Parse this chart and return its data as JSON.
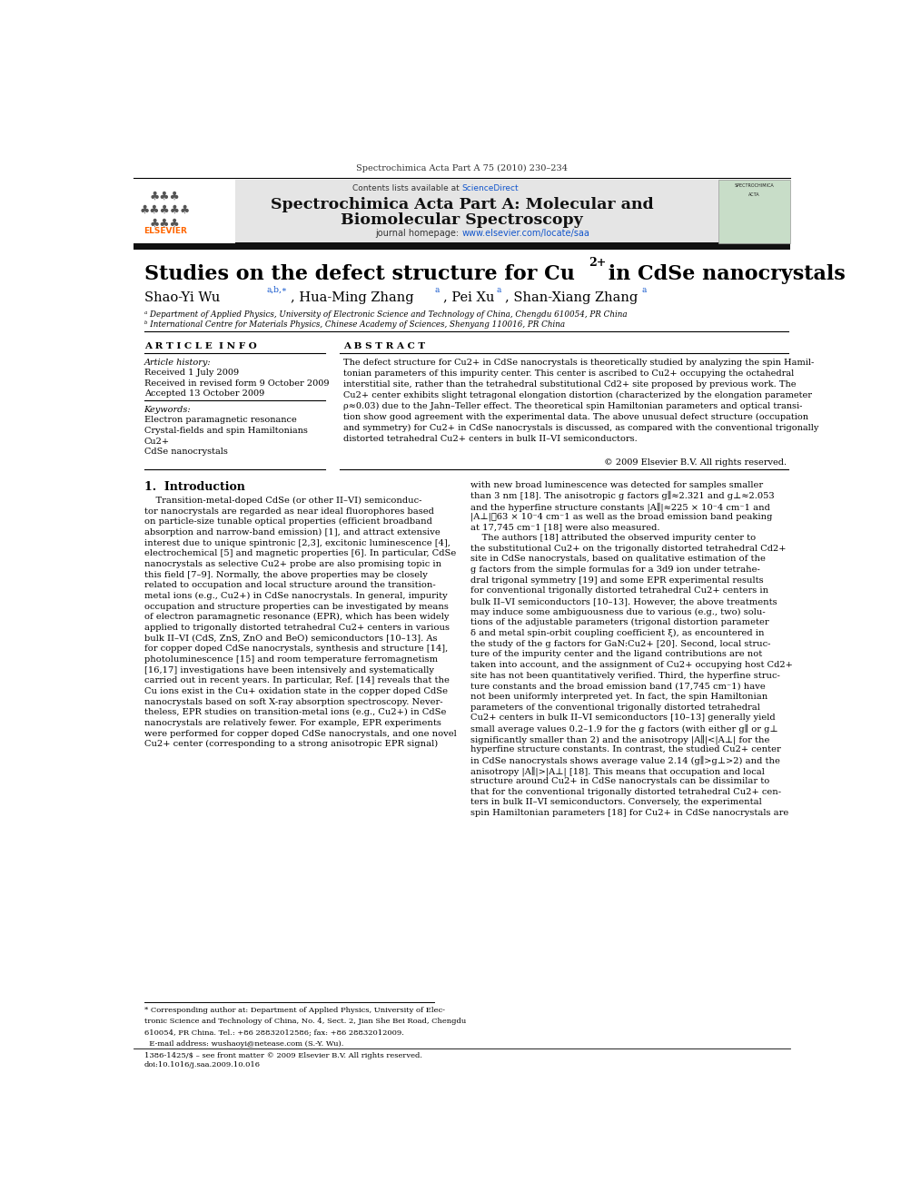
{
  "page_width": 9.92,
  "page_height": 13.23,
  "bg_color": "#ffffff",
  "header_journal_ref": "Spectrochimica Acta Part A 75 (2010) 230–234",
  "journal_title_line1": "Spectrochimica Acta Part A: Molecular and",
  "journal_title_line2": "Biomolecular Spectroscopy",
  "sciencedirect_text": "Contents lists available at ",
  "sciencedirect_link": "ScienceDirect",
  "paper_title_main": "Studies on the defect structure for Cu",
  "paper_title_sup": "2+",
  "paper_title_end": " in CdSe nanocrystals",
  "author1": "Shao-Yi Wu",
  "author1_sup": "a,b,∗",
  "author2": ", Hua-Ming Zhang",
  "author2_sup": "a",
  "author3": ", Pei Xu",
  "author3_sup": "a",
  "author4": ", Shan-Xiang Zhang",
  "author4_sup": "a",
  "affil_a": "ᵃ Department of Applied Physics, University of Electronic Science and Technology of China, Chengdu 610054, PR China",
  "affil_b": "ᵇ International Centre for Materials Physics, Chinese Academy of Sciences, Shenyang 110016, PR China",
  "article_info_header": "A R T I C L E  I N F O",
  "abstract_header": "A B S T R A C T",
  "article_history_label": "Article history:",
  "received1": "Received 1 July 2009",
  "received2": "Received in revised form 9 October 2009",
  "accepted": "Accepted 13 October 2009",
  "keywords_label": "Keywords:",
  "kw1": "Electron paramagnetic resonance",
  "kw2": "Crystal-fields and spin Hamiltonians",
  "kw3": "Cu2+",
  "kw4": "CdSe nanocrystals",
  "copyright": "© 2009 Elsevier B.V. All rights reserved.",
  "abstract_lines": [
    "The defect structure for Cu2+ in CdSe nanocrystals is theoretically studied by analyzing the spin Hamil-",
    "tonian parameters of this impurity center. This center is ascribed to Cu2+ occupying the octahedral",
    "interstitial site, rather than the tetrahedral substitutional Cd2+ site proposed by previous work. The",
    "Cu2+ center exhibits slight tetragonal elongation distortion (characterized by the elongation parameter",
    "ρ≈0.03) due to the Jahn–Teller effect. The theoretical spin Hamiltonian parameters and optical transi-",
    "tion show good agreement with the experimental data. The above unusual defect structure (occupation",
    "and symmetry) for Cu2+ in CdSe nanocrystals is discussed, as compared with the conventional trigonally",
    "distorted tetrahedral Cu2+ centers in bulk II–VI semiconductors."
  ],
  "section1_title": "1.  Introduction",
  "intro_col1_lines": [
    "    Transition-metal-doped CdSe (or other II–VI) semiconduc-",
    "tor nanocrystals are regarded as near ideal fluorophores based",
    "on particle-size tunable optical properties (efficient broadband",
    "absorption and narrow-band emission) [1], and attract extensive",
    "interest due to unique spintronic [2,3], excitonic luminescence [4],",
    "electrochemical [5] and magnetic properties [6]. In particular, CdSe",
    "nanocrystals as selective Cu2+ probe are also promising topic in",
    "this field [7–9]. Normally, the above properties may be closely",
    "related to occupation and local structure around the transition-",
    "metal ions (e.g., Cu2+) in CdSe nanocrystals. In general, impurity",
    "occupation and structure properties can be investigated by means",
    "of electron paramagnetic resonance (EPR), which has been widely",
    "applied to trigonally distorted tetrahedral Cu2+ centers in various",
    "bulk II–VI (CdS, ZnS, ZnO and BeO) semiconductors [10–13]. As",
    "for copper doped CdSe nanocrystals, synthesis and structure [14],",
    "photoluminescence [15] and room temperature ferromagnetism",
    "[16,17] investigations have been intensively and systematically",
    "carried out in recent years. In particular, Ref. [14] reveals that the",
    "Cu ions exist in the Cu+ oxidation state in the copper doped CdSe",
    "nanocrystals based on soft X-ray absorption spectroscopy. Never-",
    "theless, EPR studies on transition-metal ions (e.g., Cu2+) in CdSe",
    "nanocrystals are relatively fewer. For example, EPR experiments",
    "were performed for copper doped CdSe nanocrystals, and one novel",
    "Cu2+ center (corresponding to a strong anisotropic EPR signal)"
  ],
  "intro_col2_lines": [
    "with new broad luminescence was detected for samples smaller",
    "than 3 nm [18]. The anisotropic g factors g∥≈2.321 and g⊥≈2.053",
    "and the hyperfine structure constants |A∥|≈225 × 10⁻4 cm⁻1 and",
    "|A⊥|≣63 × 10⁻4 cm⁻1 as well as the broad emission band peaking",
    "at 17,745 cm⁻1 [18] were also measured.",
    "    The authors [18] attributed the observed impurity center to",
    "the substitutional Cu2+ on the trigonally distorted tetrahedral Cd2+",
    "site in CdSe nanocrystals, based on qualitative estimation of the",
    "g factors from the simple formulas for a 3d9 ion under tetrahe-",
    "dral trigonal symmetry [19] and some EPR experimental results",
    "for conventional trigonally distorted tetrahedral Cu2+ centers in",
    "bulk II–VI semiconductors [10–13]. However, the above treatments",
    "may induce some ambiguousness due to various (e.g., two) solu-",
    "tions of the adjustable parameters (trigonal distortion parameter",
    "δ and metal spin-orbit coupling coefficient ξ), as encountered in",
    "the study of the g factors for GaN:Cu2+ [20]. Second, local struc-",
    "ture of the impurity center and the ligand contributions are not",
    "taken into account, and the assignment of Cu2+ occupying host Cd2+",
    "site has not been quantitatively verified. Third, the hyperfine struc-",
    "ture constants and the broad emission band (17,745 cm⁻1) have",
    "not been uniformly interpreted yet. In fact, the spin Hamiltonian",
    "parameters of the conventional trigonally distorted tetrahedral",
    "Cu2+ centers in bulk II–VI semiconductors [10–13] generally yield",
    "small average values 0.2–1.9 for the g factors (with either g∥ or g⊥",
    "significantly smaller than 2) and the anisotropy |A∥|<|A⊥| for the",
    "hyperfine structure constants. In contrast, the studied Cu2+ center",
    "in CdSe nanocrystals shows average value 2.14 (g∥>g⊥>2) and the",
    "anisotropy |A∥|>|A⊥| [18]. This means that occupation and local",
    "structure around Cu2+ in CdSe nanocrystals can be dissimilar to",
    "that for the conventional trigonally distorted tetrahedral Cu2+ cen-",
    "ters in bulk II–VI semiconductors. Conversely, the experimental",
    "spin Hamiltonian parameters [18] for Cu2+ in CdSe nanocrystals are"
  ],
  "footnote_lines": [
    "* Corresponding author at: Department of Applied Physics, University of Elec-",
    "tronic Science and Technology of China, No. 4, Sect. 2, Jian She Bei Road, Chengdu",
    "610054, PR China. Tel.: +86 28832012586; fax: +86 28832012009.",
    "  E-mail address: wushaoyi@netease.com (S.-Y. Wu)."
  ],
  "footer_left": "1386-1425/$ – see front matter © 2009 Elsevier B.V. All rights reserved.",
  "footer_doi": "doi:10.1016/j.saa.2009.10.016",
  "header_bar_color": "#111111",
  "elsevier_orange": "#FF6600",
  "link_blue": "#1155CC",
  "text_color": "#000000"
}
